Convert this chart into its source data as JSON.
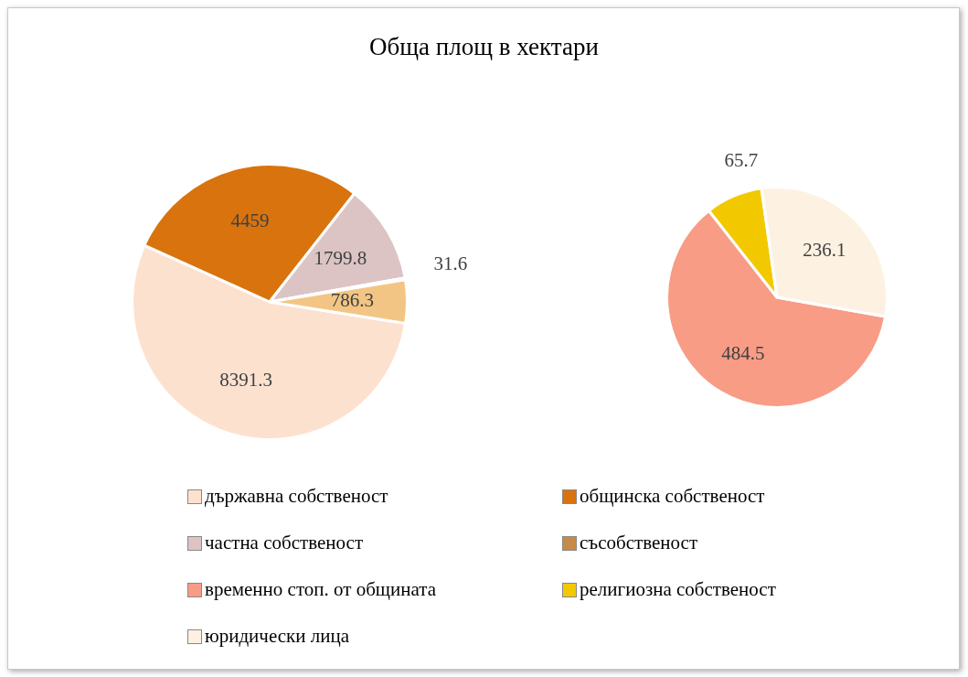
{
  "chart_data": [
    {
      "type": "pie",
      "title": "Обща площ в хектари",
      "categories": [
        "държавна собственост",
        "общинска собственост",
        "частна собственост",
        "съсобственост",
        null
      ],
      "values": [
        8391.3,
        4459,
        1799.8,
        31.6,
        786.3
      ],
      "colors": [
        "#fde1cf",
        "#d9730d",
        "#dcc4c4",
        "#c9894a",
        "#f3c585"
      ],
      "data_labels": true,
      "legend": "bottom"
    },
    {
      "type": "pie",
      "categories": [
        "временно стоп. от общината",
        "религиозна собственост",
        "юридически лица"
      ],
      "values": [
        484.5,
        65.7,
        236.1
      ],
      "colors": [
        "#f89c86",
        "#f2c900",
        "#fdf1e2"
      ],
      "data_labels": true,
      "legend": "bottom"
    }
  ]
}
